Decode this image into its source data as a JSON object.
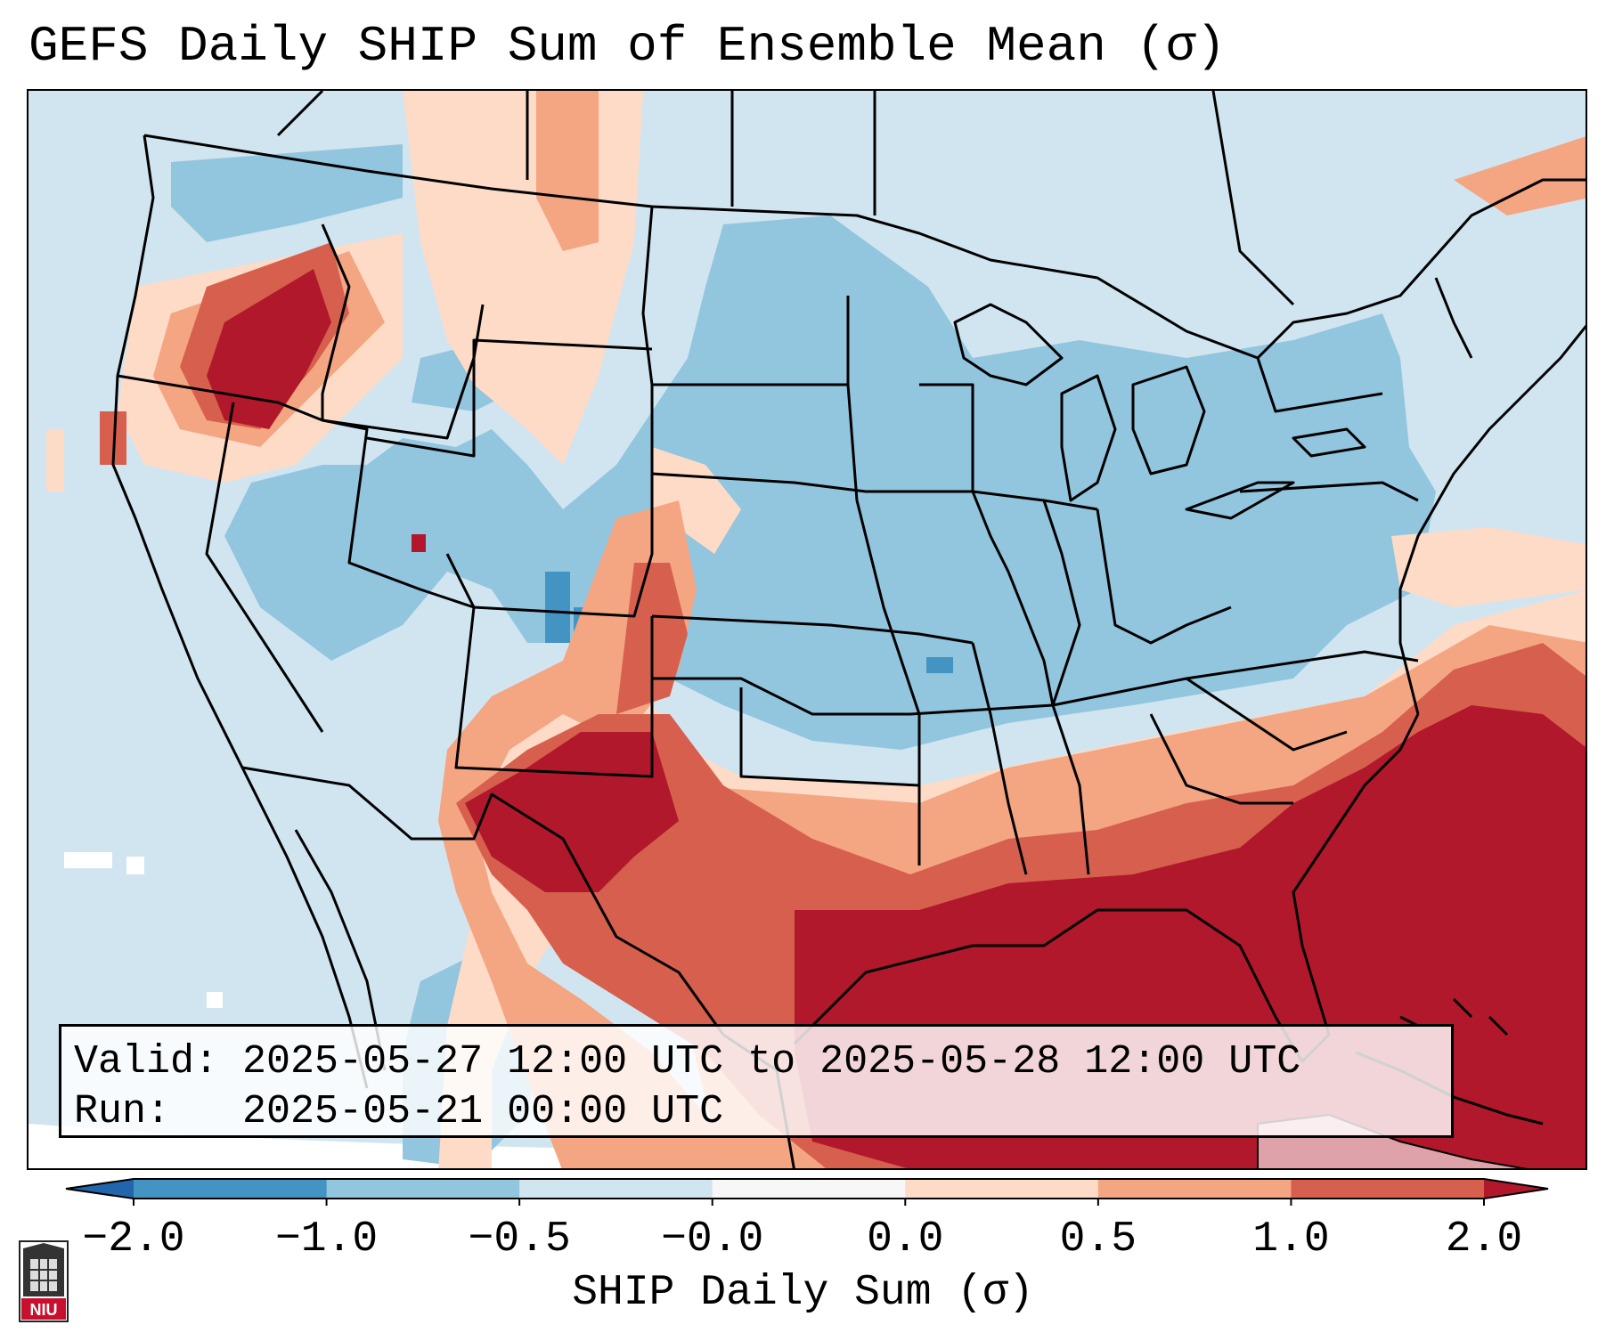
{
  "title": "GEFS Daily SHIP Sum of Ensemble Mean (σ)",
  "info": {
    "valid_label": "Valid:",
    "valid_value": "2025-05-27 12:00 UTC to 2025-05-28 12:00 UTC",
    "run_label": "Run:",
    "run_value": "2025-05-21 00:00 UTC"
  },
  "colorbar": {
    "label": "SHIP Daily Sum (σ)",
    "ticks": [
      "−2.0",
      "−1.0",
      "−0.5",
      "−0.0",
      "0.0",
      "0.5",
      "1.0",
      "2.0"
    ],
    "bins": [
      {
        "color": "#2166ac"
      },
      {
        "color": "#4393c3"
      },
      {
        "color": "#92c5de"
      },
      {
        "color": "#d1e5f0"
      },
      {
        "color": "#f7f7f7"
      },
      {
        "color": "#fddbc7"
      },
      {
        "color": "#f4a582"
      },
      {
        "color": "#d6604d"
      },
      {
        "color": "#b2182b"
      }
    ]
  },
  "map": {
    "region": "CONUS",
    "background_color": "#d1e5f0",
    "border_color": "#000000"
  },
  "logo": {
    "text": "NIU",
    "icon": "niu-logo-icon"
  }
}
